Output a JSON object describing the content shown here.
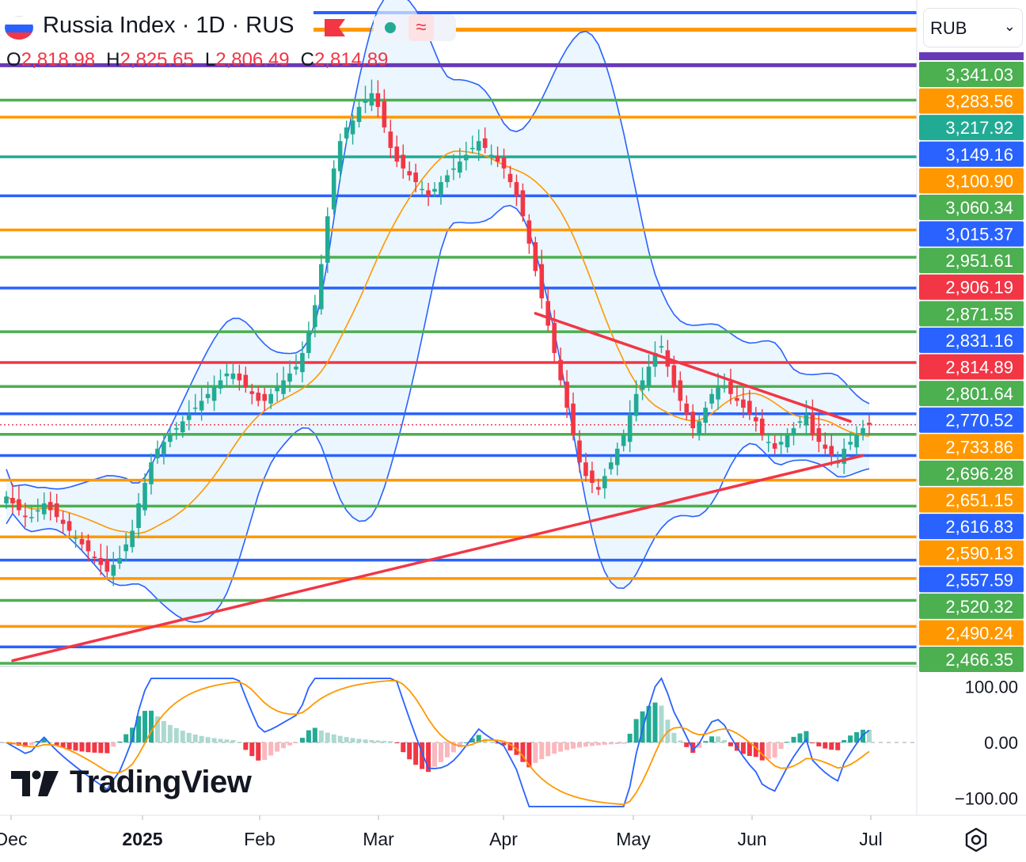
{
  "header": {
    "title": "Russia Index · 1D · RUS",
    "ohlc": [
      {
        "key": "O",
        "value": "2,818.98"
      },
      {
        "key": "H",
        "value": "2,825.65"
      },
      {
        "key": "L",
        "value": "2,806.49"
      },
      {
        "key": "C",
        "value": "2,814.89"
      }
    ],
    "flag_icon": "russia-flag-icon",
    "alert_icon": "flag-marker-icon",
    "status_symbol": "≈"
  },
  "currency_select": {
    "value": "RUB",
    "chevron": "⌄"
  },
  "branding": {
    "name": "TradingView"
  },
  "colors": {
    "up": "#22ab94",
    "down": "#f23645",
    "blue": "#2962ff",
    "orange": "#ff9800",
    "green": "#4caf50",
    "purple": "#673ab7",
    "band_fill": "#e3f2fd",
    "trend": "#f23645"
  },
  "chart_data": {
    "type": "candlestick",
    "title": "Russia Index · 1D · RUS",
    "x_ticks": [
      "Dec",
      "2025",
      "Feb",
      "Mar",
      "Apr",
      "May",
      "Jun",
      "Jul"
    ],
    "ylim": [
      2466,
      3360
    ],
    "last_price": 2814.89,
    "price_labels": [
      {
        "value": "3,341.03",
        "color": "#4caf50"
      },
      {
        "value": "3,283.56",
        "color": "#ff9800"
      },
      {
        "value": "3,217.92",
        "color": "#22ab94"
      },
      {
        "value": "3,149.16",
        "color": "#2962ff"
      },
      {
        "value": "3,100.90",
        "color": "#ff9800"
      },
      {
        "value": "3,060.34",
        "color": "#4caf50"
      },
      {
        "value": "3,015.37",
        "color": "#2962ff"
      },
      {
        "value": "2,951.61",
        "color": "#4caf50"
      },
      {
        "value": "2,906.19",
        "color": "#f23645"
      },
      {
        "value": "2,871.55",
        "color": "#4caf50"
      },
      {
        "value": "2,831.16",
        "color": "#2962ff"
      },
      {
        "value": "2,814.89",
        "color": "#f23645"
      },
      {
        "value": "2,801.64",
        "color": "#4caf50"
      },
      {
        "value": "2,770.52",
        "color": "#2962ff"
      },
      {
        "value": "2,733.86",
        "color": "#ff9800"
      },
      {
        "value": "2,696.28",
        "color": "#4caf50"
      },
      {
        "value": "2,651.15",
        "color": "#ff9800"
      },
      {
        "value": "2,616.83",
        "color": "#2962ff"
      },
      {
        "value": "2,590.13",
        "color": "#ff9800"
      },
      {
        "value": "2,557.59",
        "color": "#2962ff"
      },
      {
        "value": "2,520.32",
        "color": "#4caf50"
      },
      {
        "value": "2,490.24",
        "color": "#ff9800"
      },
      {
        "value": "2,466.35",
        "color": "#4caf50"
      }
    ],
    "horizontal_levels": [
      {
        "price": 3341,
        "color": "#673ab7"
      },
      {
        "price": 3290,
        "color": "#4caf50"
      },
      {
        "price": 3265,
        "color": "#ff9800"
      },
      {
        "price": 3207,
        "color": "#22ab94"
      },
      {
        "price": 3150,
        "color": "#2962ff"
      },
      {
        "price": 3100,
        "color": "#ff9800"
      },
      {
        "price": 3060,
        "color": "#4caf50"
      },
      {
        "price": 3015,
        "color": "#2962ff"
      },
      {
        "price": 2951,
        "color": "#4caf50"
      },
      {
        "price": 2906,
        "color": "#f23645"
      },
      {
        "price": 2871,
        "color": "#4caf50"
      },
      {
        "price": 2831,
        "color": "#2962ff"
      },
      {
        "price": 2801,
        "color": "#4caf50"
      },
      {
        "price": 2770,
        "color": "#2962ff"
      },
      {
        "price": 2734,
        "color": "#ff9800"
      },
      {
        "price": 2696,
        "color": "#4caf50"
      },
      {
        "price": 2651,
        "color": "#ff9800"
      },
      {
        "price": 2617,
        "color": "#2962ff"
      },
      {
        "price": 2590,
        "color": "#ff9800"
      },
      {
        "price": 2558,
        "color": "#4caf50"
      },
      {
        "price": 2520,
        "color": "#ff9800"
      },
      {
        "price": 2490,
        "color": "#2962ff"
      },
      {
        "price": 2466,
        "color": "#4caf50"
      }
    ],
    "close_series": [
      2710,
      2700,
      2690,
      2680,
      2680,
      2690,
      2700,
      2690,
      2680,
      2670,
      2660,
      2650,
      2640,
      2630,
      2620,
      2610,
      2600,
      2610,
      2620,
      2640,
      2660,
      2700,
      2730,
      2760,
      2780,
      2790,
      2800,
      2810,
      2820,
      2830,
      2840,
      2850,
      2860,
      2870,
      2880,
      2890,
      2890,
      2880,
      2870,
      2860,
      2850,
      2850,
      2860,
      2870,
      2880,
      2890,
      2900,
      2920,
      2950,
      2990,
      3050,
      3120,
      3190,
      3230,
      3250,
      3260,
      3280,
      3290,
      3300,
      3280,
      3250,
      3220,
      3200,
      3190,
      3180,
      3170,
      3160,
      3150,
      3160,
      3170,
      3180,
      3190,
      3200,
      3210,
      3220,
      3230,
      3220,
      3210,
      3200,
      3190,
      3170,
      3150,
      3120,
      3080,
      3040,
      3000,
      2960,
      2920,
      2880,
      2840,
      2800,
      2760,
      2740,
      2730,
      2720,
      2740,
      2760,
      2780,
      2800,
      2830,
      2860,
      2880,
      2900,
      2920,
      2930,
      2900,
      2870,
      2850,
      2830,
      2810,
      2820,
      2840,
      2860,
      2870,
      2870,
      2860,
      2850,
      2840,
      2830,
      2820,
      2800,
      2790,
      2780,
      2790,
      2800,
      2810,
      2820,
      2830,
      2800,
      2790,
      2780,
      2770,
      2760,
      2780,
      2790,
      2800,
      2810,
      2815
    ],
    "bollinger": {
      "period": 20,
      "stddev": 2
    },
    "trendlines": [
      {
        "from": {
          "bar": 1,
          "price": 2470
        },
        "to": {
          "bar": 136,
          "price": 2770
        }
      },
      {
        "from": {
          "bar": 84,
          "price": 2978
        },
        "to": {
          "bar": 134,
          "price": 2820
        }
      }
    ],
    "oscillator": {
      "ylim": [
        -125,
        125
      ],
      "ticks": [
        "100.00",
        "0.00",
        "−100.00"
      ]
    }
  }
}
